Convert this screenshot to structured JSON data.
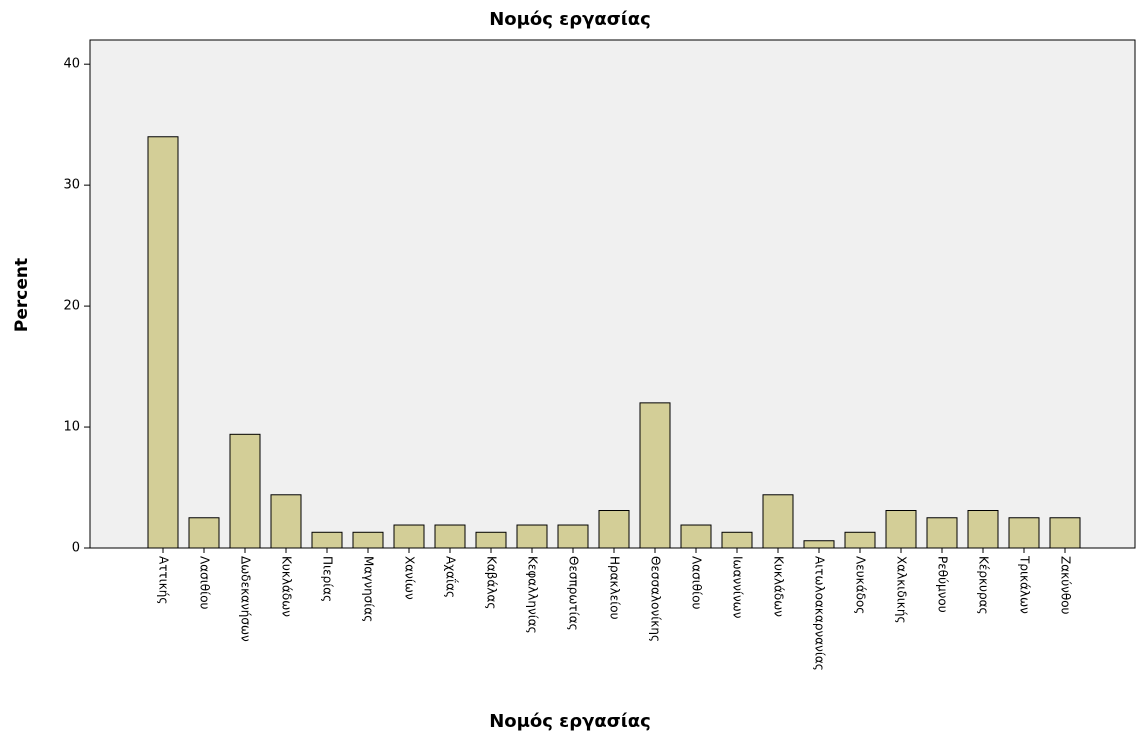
{
  "chart_data": {
    "type": "bar",
    "title": "Νομός εργασίας",
    "x_label": "Νομός εργασίας",
    "y_label": "Percent",
    "categories": [
      "Αττικής",
      "Λασιθίου",
      "Δωδεκανήσων",
      "Κυκλάδων",
      "Πιερίας",
      "Μαγνησίας",
      "Χανίων",
      "Αχαΐας",
      "Καβάλας",
      "Κεφαλληνίας",
      "Θεσπρωτίας",
      "Ηρακλείου",
      "Θεσσαλονίκης",
      "Λασιθίου",
      "Ιωαννίνων",
      "Κυκλάδων",
      "Αιτωλοακαρνανίας",
      "Λευκάδος",
      "Χαλκιδικής",
      "Ρεθύμνου",
      "Κέρκυρας",
      "Τρικάλων",
      "Ζακύνθου"
    ],
    "values": [
      34,
      2.5,
      9.4,
      4.4,
      1.3,
      1.3,
      1.9,
      1.9,
      1.3,
      1.9,
      1.9,
      3.1,
      12,
      1.9,
      1.3,
      4.4,
      0.6,
      1.3,
      3.1,
      2.5,
      3.1,
      2.5,
      2.5
    ],
    "color": "#d3ce97",
    "ylim": [
      0,
      42
    ],
    "yticks": [
      0,
      10,
      20,
      30,
      40
    ],
    "grid": false
  }
}
